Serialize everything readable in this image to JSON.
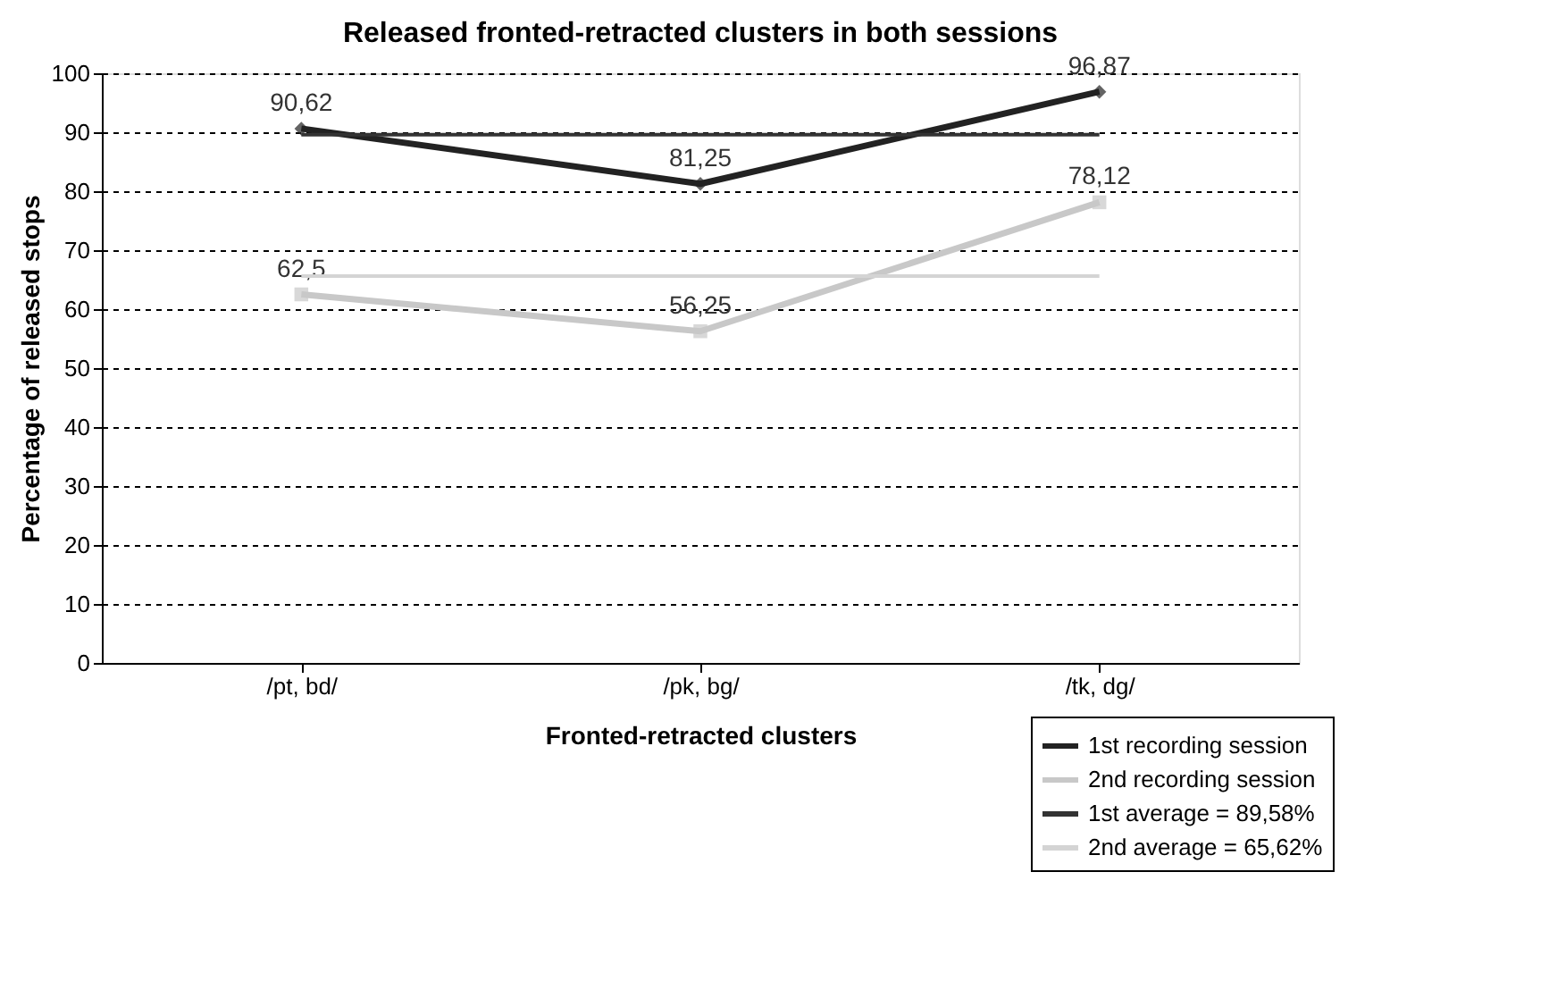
{
  "chart_data": {
    "type": "line",
    "title": "Released fronted-retracted clusters in both sessions",
    "xlabel": "Fronted-retracted clusters",
    "ylabel": "Percentage of released stops",
    "categories": [
      "/pt, bd/",
      "/pk, bg/",
      "/tk, dg/"
    ],
    "series": [
      {
        "name": "1st recording session",
        "color": "#222222",
        "values": [
          90.62,
          81.25,
          96.87
        ],
        "marker": "diamond",
        "value_labels": [
          "90,62",
          "81,25",
          "96,87"
        ]
      },
      {
        "name": "2nd recording session",
        "color": "#c8c8c8",
        "values": [
          62.5,
          56.25,
          78.12
        ],
        "marker": "square",
        "value_labels": [
          "62,5",
          "56,25",
          "78,12"
        ]
      },
      {
        "name": "1st average = 89,58%",
        "color": "#333333",
        "values": [
          89.58,
          89.58,
          89.58
        ],
        "marker": "none"
      },
      {
        "name": "2nd average = 65,62%",
        "color": "#d4d4d4",
        "values": [
          65.62,
          65.62,
          65.62
        ],
        "marker": "none"
      }
    ],
    "ylim": [
      0,
      100
    ],
    "yticks": [
      0,
      10,
      20,
      30,
      40,
      50,
      60,
      70,
      80,
      90,
      100
    ],
    "grid": "y",
    "legend": "bottom right",
    "line_style": "solid"
  }
}
